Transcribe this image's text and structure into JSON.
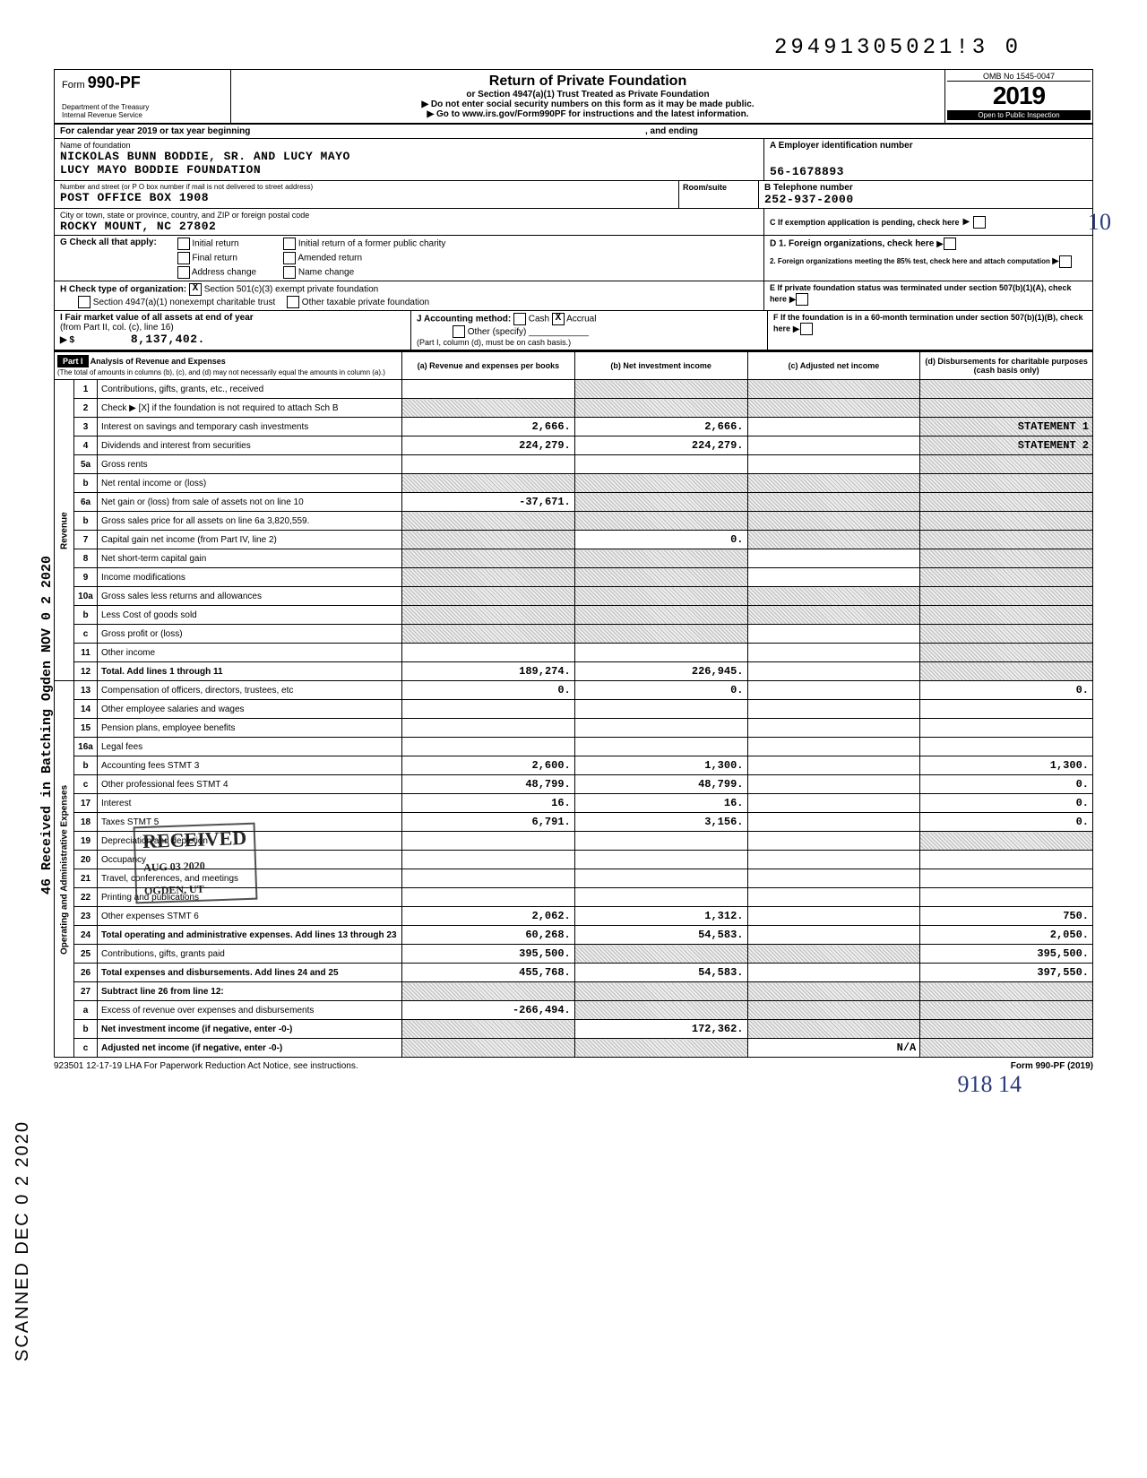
{
  "top_number": "29491305021!3  0",
  "header": {
    "form_label": "Form",
    "form_number": "990-PF",
    "dept": "Department of the Treasury",
    "irs": "Internal Revenue Service",
    "title": "Return of Private Foundation",
    "subtitle1": "or Section 4947(a)(1) Trust Treated as Private Foundation",
    "subtitle2": "▶ Do not enter social security numbers on this form as it may be made public.",
    "subtitle3": "▶ Go to www.irs.gov/Form990PF for instructions and the latest information.",
    "omb": "OMB No  1545-0047",
    "year": "2019",
    "open": "Open to Public Inspection"
  },
  "cal_year": {
    "label_left": "For calendar year 2019 or tax year beginning",
    "label_mid": ", and ending"
  },
  "name_block": {
    "name_label": "Name of foundation",
    "name_line1": "NICKOLAS BUNN BODDIE, SR. AND LUCY MAYO",
    "name_line2": "LUCY MAYO BODDIE FOUNDATION",
    "addr_label": "Number and street (or P O  box number if mail is not delivered to street address)",
    "addr": "POST OFFICE BOX 1908",
    "room_label": "Room/suite",
    "city_label": "City or town, state or province, country, and ZIP or foreign postal code",
    "city": "ROCKY MOUNT, NC   27802",
    "ein_label": "A  Employer identification number",
    "ein": "56-1678893",
    "phone_label": "B  Telephone number",
    "phone": "252-937-2000",
    "c_label": "C  If exemption application is pending, check here"
  },
  "g_block": {
    "label": "G   Check all that apply:",
    "opts": [
      "Initial return",
      "Final return",
      "Address change",
      "Initial return of a former public charity",
      "Amended return",
      "Name change"
    ]
  },
  "h_block": {
    "label": "H   Check type of organization:",
    "opt1": "Section 501(c)(3) exempt private foundation",
    "opt2": "Section 4947(a)(1) nonexempt charitable trust",
    "opt3": "Other taxable private foundation"
  },
  "i_block": {
    "label": "I   Fair market value of all assets at end of year",
    "sublabel": "(from Part II, col. (c), line 16)",
    "arrow": "▶ $",
    "value": "8,137,402."
  },
  "j_block": {
    "label": "J   Accounting method:",
    "opts": [
      "Cash",
      "Accrual",
      "Other (specify)"
    ],
    "note": "(Part I, column (d), must be on cash basis.)",
    "accrual_checked": "X"
  },
  "d_block": {
    "label": "D  1. Foreign organizations, check here",
    "label2": "2. Foreign organizations meeting the 85% test, check here and attach computation"
  },
  "e_block": {
    "label": "E   If private foundation status was terminated under section 507(b)(1)(A), check here"
  },
  "f_block": {
    "label": "F   If the foundation is in a 60-month termination under section 507(b)(1)(B), check here"
  },
  "part1": {
    "label": "Part I",
    "title": "Analysis of Revenue and Expenses",
    "note": "(The total of amounts in columns (b), (c), and (d) may not necessarily equal the amounts in column (a).)",
    "cols": {
      "a": "(a) Revenue and expenses per books",
      "b": "(b) Net investment income",
      "c": "(c) Adjusted net income",
      "d": "(d) Disbursements for charitable purposes (cash basis only)"
    }
  },
  "revenue_label": "Revenue",
  "expenses_label": "Operating and Administrative Expenses",
  "rows": [
    {
      "n": "1",
      "desc": "Contributions, gifts, grants, etc., received",
      "a": "",
      "b_shade": true,
      "c_shade": true,
      "d_shade": true
    },
    {
      "n": "2",
      "desc": "Check ▶ [X] if the foundation is not required to attach Sch B",
      "a_shade": true,
      "b_shade": true,
      "c_shade": true,
      "d_shade": true
    },
    {
      "n": "3",
      "desc": "Interest on savings and temporary cash investments",
      "a": "2,666.",
      "b": "2,666.",
      "c": "",
      "d": "STATEMENT 1",
      "d_shade": true
    },
    {
      "n": "4",
      "desc": "Dividends and interest from securities",
      "a": "224,279.",
      "b": "224,279.",
      "c": "",
      "d": "STATEMENT 2",
      "d_shade": true
    },
    {
      "n": "5a",
      "desc": "Gross rents",
      "a": "",
      "b": "",
      "c": "",
      "d_shade": true
    },
    {
      "n": "b",
      "desc": "Net rental income or (loss)",
      "a_shade": true,
      "b_shade": true,
      "c_shade": true,
      "d_shade": true
    },
    {
      "n": "6a",
      "desc": "Net gain or (loss) from sale of assets not on line 10",
      "a": "-37,671.",
      "b_shade": true,
      "c_shade": true,
      "d_shade": true
    },
    {
      "n": "b",
      "desc": "Gross sales price for all assets on line 6a     3,820,559.",
      "a_shade": true,
      "b_shade": true,
      "c_shade": true,
      "d_shade": true
    },
    {
      "n": "7",
      "desc": "Capital gain net income (from Part IV, line 2)",
      "a_shade": true,
      "b": "0.",
      "c_shade": true,
      "d_shade": true
    },
    {
      "n": "8",
      "desc": "Net short-term capital gain",
      "a_shade": true,
      "b_shade": true,
      "c": "",
      "d_shade": true
    },
    {
      "n": "9",
      "desc": "Income modifications",
      "a_shade": true,
      "b_shade": true,
      "c": "",
      "d_shade": true
    },
    {
      "n": "10a",
      "desc": "Gross sales less returns and allowances",
      "a_shade": true,
      "b_shade": true,
      "c_shade": true,
      "d_shade": true
    },
    {
      "n": "b",
      "desc": "Less  Cost of goods sold",
      "a_shade": true,
      "b_shade": true,
      "c_shade": true,
      "d_shade": true
    },
    {
      "n": "c",
      "desc": "Gross profit or (loss)",
      "a_shade": true,
      "b_shade": true,
      "c": "",
      "d_shade": true
    },
    {
      "n": "11",
      "desc": "Other income",
      "a": "",
      "b": "",
      "c": "",
      "d_shade": true
    },
    {
      "n": "12",
      "desc": "Total. Add lines 1 through 11",
      "a": "189,274.",
      "b": "226,945.",
      "c": "",
      "d_shade": true,
      "bold": true
    },
    {
      "n": "13",
      "desc": "Compensation of officers, directors, trustees, etc",
      "a": "0.",
      "b": "0.",
      "c": "",
      "d": "0."
    },
    {
      "n": "14",
      "desc": "Other employee salaries and wages",
      "a": "",
      "b": "",
      "c": "",
      "d": ""
    },
    {
      "n": "15",
      "desc": "Pension plans, employee benefits",
      "a": "",
      "b": "",
      "c": "",
      "d": ""
    },
    {
      "n": "16a",
      "desc": "Legal fees",
      "a": "",
      "b": "",
      "c": "",
      "d": ""
    },
    {
      "n": "b",
      "desc": "Accounting fees                       STMT  3",
      "a": "2,600.",
      "b": "1,300.",
      "c": "",
      "d": "1,300."
    },
    {
      "n": "c",
      "desc": "Other professional fees               STMT  4",
      "a": "48,799.",
      "b": "48,799.",
      "c": "",
      "d": "0."
    },
    {
      "n": "17",
      "desc": "Interest",
      "a": "16.",
      "b": "16.",
      "c": "",
      "d": "0."
    },
    {
      "n": "18",
      "desc": "Taxes                                 STMT  5",
      "a": "6,791.",
      "b": "3,156.",
      "c": "",
      "d": "0."
    },
    {
      "n": "19",
      "desc": "Depreciation and depletion",
      "a": "",
      "b": "",
      "c": "",
      "d_shade": true
    },
    {
      "n": "20",
      "desc": "Occupancy",
      "a": "",
      "b": "",
      "c": "",
      "d": ""
    },
    {
      "n": "21",
      "desc": "Travel, conferences, and meetings",
      "a": "",
      "b": "",
      "c": "",
      "d": ""
    },
    {
      "n": "22",
      "desc": "Printing and publications",
      "a": "",
      "b": "",
      "c": "",
      "d": ""
    },
    {
      "n": "23",
      "desc": "Other expenses                        STMT  6",
      "a": "2,062.",
      "b": "1,312.",
      "c": "",
      "d": "750."
    },
    {
      "n": "24",
      "desc": "Total operating and administrative expenses. Add lines 13 through 23",
      "a": "60,268.",
      "b": "54,583.",
      "c": "",
      "d": "2,050.",
      "bold": true
    },
    {
      "n": "25",
      "desc": "Contributions, gifts, grants paid",
      "a": "395,500.",
      "b_shade": true,
      "c_shade": true,
      "d": "395,500."
    },
    {
      "n": "26",
      "desc": "Total expenses and disbursements. Add lines 24 and 25",
      "a": "455,768.",
      "b": "54,583.",
      "c": "",
      "d": "397,550.",
      "bold": true
    },
    {
      "n": "27",
      "desc": "Subtract line 26 from line 12:",
      "a_shade": true,
      "b_shade": true,
      "c_shade": true,
      "d_shade": true,
      "bold": true
    },
    {
      "n": "a",
      "desc": "Excess of revenue over expenses and disbursements",
      "a": "-266,494.",
      "b_shade": true,
      "c_shade": true,
      "d_shade": true
    },
    {
      "n": "b",
      "desc": "Net investment income (if negative, enter -0-)",
      "a_shade": true,
      "b": "172,362.",
      "c_shade": true,
      "d_shade": true,
      "bold": true
    },
    {
      "n": "c",
      "desc": "Adjusted net income (if negative, enter -0-)",
      "a_shade": true,
      "b_shade": true,
      "c": "N/A",
      "d_shade": true,
      "bold": true
    }
  ],
  "footer": {
    "left": "923501  12-17-19    LHA   For Paperwork Reduction Act Notice, see instructions.",
    "right": "Form 990-PF (2019)"
  },
  "stamps": {
    "received1": "RECEIVED",
    "received1_date": "AUG 03 2020",
    "received1_where": "OGDEN, UT",
    "side_scanned": "SCANNED DEC 0 2 2020",
    "side_received": "46 Received in Batching Ogden NOV 0 2 2020",
    "hw": "918  14",
    "hw_top": "10"
  }
}
